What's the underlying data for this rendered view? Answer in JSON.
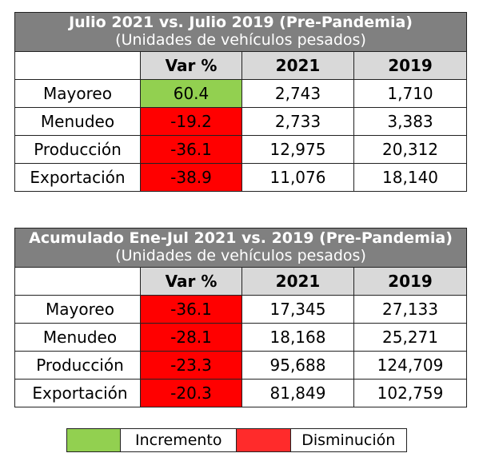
{
  "table1": {
    "title": "Julio 2021 vs. Julio 2019 (Pre-Pandemia)",
    "subtitle": "(Unidades de vehículos pesados)",
    "headers": [
      "",
      "Var %",
      "2021",
      "2019"
    ],
    "rows": [
      {
        "label": "Mayoreo",
        "var": "60.4",
        "y2021": "2,743",
        "y2019": "1,710",
        "trend": "up"
      },
      {
        "label": "Menudeo",
        "var": "-19.2",
        "y2021": "2,733",
        "y2019": "3,383",
        "trend": "down"
      },
      {
        "label": "Producción",
        "var": "-36.1",
        "y2021": "12,975",
        "y2019": "20,312",
        "trend": "down"
      },
      {
        "label": "Exportación",
        "var": "-38.9",
        "y2021": "11,076",
        "y2019": "18,140",
        "trend": "down"
      }
    ]
  },
  "table2": {
    "title": "Acumulado Ene-Jul 2021 vs. 2019 (Pre-Pandemia)",
    "subtitle": "(Unidades de vehículos pesados)",
    "headers": [
      "",
      "Var %",
      "2021",
      "2019"
    ],
    "rows": [
      {
        "label": "Mayoreo",
        "var": "-36.1",
        "y2021": "17,345",
        "y2019": "27,133",
        "trend": "down"
      },
      {
        "label": "Menudeo",
        "var": "-28.1",
        "y2021": "18,168",
        "y2019": "25,271",
        "trend": "down"
      },
      {
        "label": "Producción",
        "var": "-23.3",
        "y2021": "95,688",
        "y2019": "124,709",
        "trend": "down"
      },
      {
        "label": "Exportación",
        "var": "-20.3",
        "y2021": "81,849",
        "y2019": "102,759",
        "trend": "down"
      }
    ]
  },
  "legend": {
    "increase_label": "Incremento",
    "decrease_label": "Disminución",
    "increase_color": "#92d050",
    "decrease_color": "#ff0000"
  }
}
